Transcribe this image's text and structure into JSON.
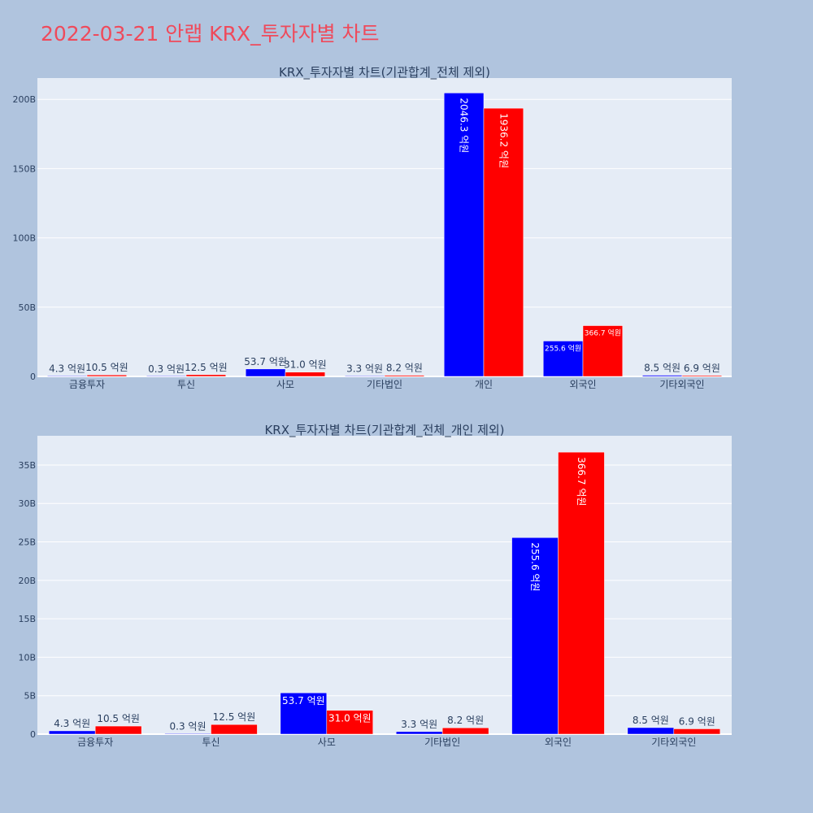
{
  "page_title": "2022-03-21 안랩 KRX_투자자별 차트",
  "colors": {
    "background": "#b0c4de",
    "plot_bg": "#e5ecf6",
    "title": "#ef4a5b",
    "series_a": "#0000ff",
    "series_b": "#ff0000",
    "text": "#2a3f5f"
  },
  "chart_data": [
    {
      "type": "bar",
      "title": "KRX_투자자별 차트(기관합계_전체 제외)",
      "categories": [
        "금융투자",
        "투신",
        "사모",
        "기타법인",
        "개인",
        "외국인",
        "기타외국인"
      ],
      "series": [
        {
          "color": "#0000ff",
          "values": [
            0.43,
            0.03,
            5.37,
            0.33,
            204.63,
            25.56,
            0.85
          ],
          "labels": [
            "4.3 억원",
            "0.3 억원",
            "53.7 억원",
            "3.3 억원",
            "2046.3 억원",
            "255.6 억원",
            "8.5 억원"
          ]
        },
        {
          "color": "#ff0000",
          "values": [
            1.05,
            1.25,
            3.1,
            0.82,
            193.62,
            36.67,
            0.69
          ],
          "labels": [
            "10.5 억원",
            "12.5 억원",
            "31.0 억원",
            "8.2 억원",
            "1936.2 억원",
            "366.7 억원",
            "6.9 억원"
          ]
        }
      ],
      "yticks": [
        0,
        50,
        100,
        150,
        200
      ],
      "ytick_labels": [
        "0",
        "50B",
        "100B",
        "150B",
        "200B"
      ],
      "ylim": [
        0,
        215.4
      ],
      "grid": true
    },
    {
      "type": "bar",
      "title": "KRX_투자자별 차트(기관합계_전체_개인 제외)",
      "categories": [
        "금융투자",
        "투신",
        "사모",
        "기타법인",
        "외국인",
        "기타외국인"
      ],
      "series": [
        {
          "color": "#0000ff",
          "values": [
            0.43,
            0.03,
            5.37,
            0.33,
            25.56,
            0.85
          ],
          "labels": [
            "4.3 억원",
            "0.3 억원",
            "53.7 억원",
            "3.3 억원",
            "255.6 억원",
            "8.5 억원"
          ]
        },
        {
          "color": "#ff0000",
          "values": [
            1.05,
            1.25,
            3.1,
            0.82,
            36.67,
            0.69
          ],
          "labels": [
            "10.5 억원",
            "12.5 억원",
            "31.0 억원",
            "8.2 억원",
            "366.7 억원",
            "6.9 억원"
          ]
        }
      ],
      "yticks": [
        0,
        5,
        10,
        15,
        20,
        25,
        30,
        35
      ],
      "ytick_labels": [
        "0",
        "5B",
        "10B",
        "15B",
        "20B",
        "25B",
        "30B",
        "35B"
      ],
      "ylim": [
        0,
        38.8
      ],
      "grid": true
    }
  ]
}
